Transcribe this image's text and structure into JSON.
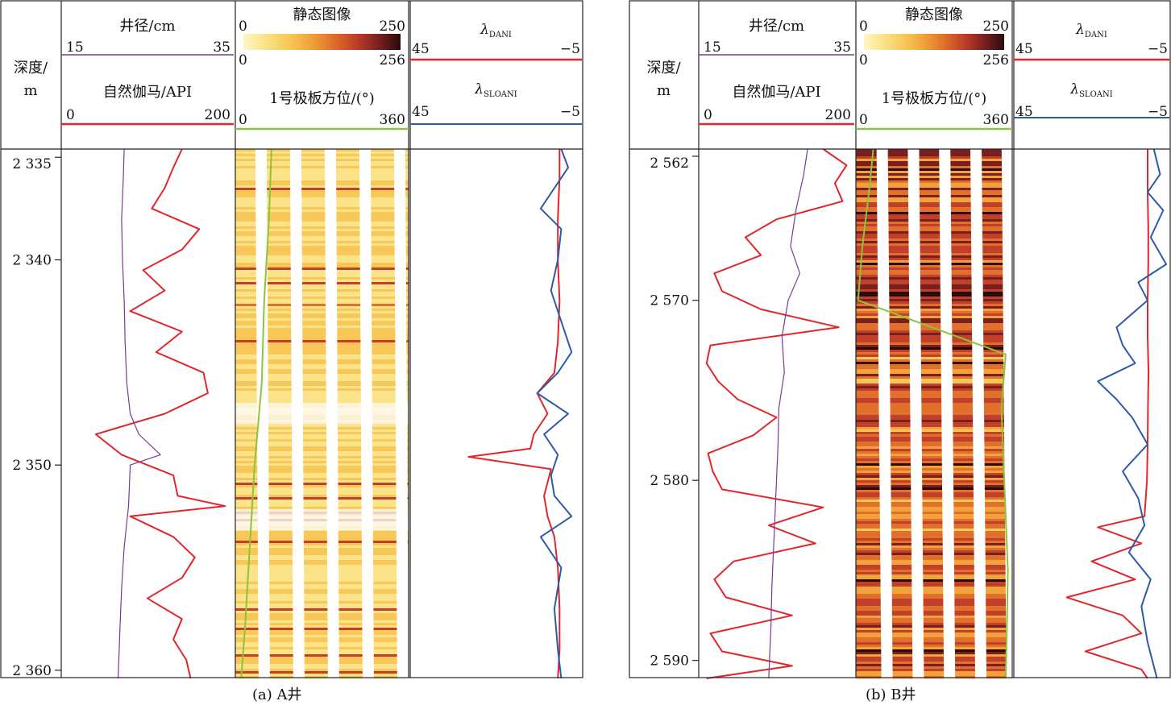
{
  "captions": {
    "a": "(a) A井",
    "b": "(b) B井"
  },
  "colors": {
    "gr": "#e0272c",
    "caliper": "#7b3a94",
    "pad": "#8cc43c",
    "dani": "#e0272c",
    "sloani": "#2f5aa8",
    "frame": "#222222"
  },
  "header": {
    "depth_label_1": "深度/",
    "depth_label_2": "m",
    "caliper_title": "井径/cm",
    "caliper_min": "15",
    "caliper_max": "35",
    "gr_title": "自然伽马/API",
    "gr_min": "0",
    "gr_max": "200",
    "image_title": "静态图像",
    "image_scale_top_min": "0",
    "image_scale_top_max": "250",
    "image_scale_bottom_min": "0",
    "image_scale_bottom_max": "256",
    "pad_title": "1号极板方位/(°)",
    "pad_min": "0",
    "pad_max": "360",
    "dani_symbol": "λ",
    "dani_sub": "DANI",
    "dani_min": "45",
    "dani_max": "−5",
    "sloani_symbol": "λ",
    "sloani_sub": "SLOANI",
    "sloani_min": "45",
    "sloani_max": "−5"
  },
  "chart_data": [
    {
      "type": "line",
      "title": "",
      "well": "A井",
      "depth_ticks": [
        "2 335",
        "2 340",
        "2 350",
        "2 360"
      ],
      "depth_tick_values": [
        2335,
        2340,
        2350,
        2360
      ],
      "depth_range": [
        2334.6,
        2360.4
      ],
      "series": [
        {
          "name": "自然伽马/API",
          "key": "gr",
          "xlim": [
            0,
            200
          ],
          "depth": [
            2334.6,
            2335.5,
            2336.5,
            2337.5,
            2338.5,
            2339.5,
            2340.5,
            2341.5,
            2342.5,
            2343.5,
            2344.5,
            2345.5,
            2346.5,
            2347.5,
            2348.5,
            2349.5,
            2350.5,
            2351.5,
            2352.0,
            2352.5,
            2353.5,
            2354.5,
            2355.5,
            2356.5,
            2357.5,
            2358.5,
            2359.5,
            2360.4
          ],
          "values": [
            140,
            130,
            120,
            105,
            160,
            140,
            95,
            120,
            80,
            140,
            110,
            165,
            170,
            120,
            40,
            70,
            130,
            135,
            190,
            80,
            130,
            155,
            140,
            100,
            140,
            130,
            145,
            150
          ]
        },
        {
          "name": "井径/cm",
          "key": "caliper",
          "xlim": [
            15,
            35
          ],
          "depth": [
            2334.6,
            2336,
            2338,
            2340,
            2342,
            2344,
            2346,
            2347.5,
            2348.5,
            2349.5,
            2350,
            2352,
            2354,
            2356,
            2358,
            2360.4
          ],
          "values": [
            22.3,
            22.2,
            22.0,
            22.1,
            22.3,
            22.4,
            22.6,
            23.0,
            24.0,
            26.5,
            23.0,
            22.8,
            22.3,
            22.0,
            21.8,
            21.6
          ]
        },
        {
          "name": "λDANI",
          "key": "dani",
          "xlim": [
            45,
            -5
          ],
          "depth": [
            2334.6,
            2336,
            2338,
            2340,
            2342,
            2344,
            2345.5,
            2346.5,
            2347.5,
            2348.5,
            2349.2,
            2349.6,
            2350.2,
            2351.5,
            2352.5,
            2353.5,
            2355,
            2357,
            2359,
            2360.4
          ],
          "values": [
            1.5,
            1.5,
            2,
            2,
            1.5,
            2,
            3,
            8,
            5,
            9,
            10,
            28,
            4,
            6,
            5,
            3,
            2,
            1.5,
            1.5,
            2
          ]
        },
        {
          "name": "λSLOANI",
          "key": "sloani",
          "xlim": [
            45,
            -5
          ],
          "depth": [
            2334.6,
            2335.5,
            2336.5,
            2337.5,
            2338.5,
            2340,
            2341.5,
            2343,
            2344.5,
            2345.5,
            2346.5,
            2347.5,
            2348.5,
            2349.5,
            2350.5,
            2351.5,
            2352.5,
            2353.5,
            2355,
            2357,
            2359,
            2360.4
          ],
          "values": [
            1,
            -1,
            3,
            7,
            1,
            2,
            4,
            1,
            -2,
            2,
            8,
            -1,
            6,
            2,
            4,
            3,
            -2,
            7,
            1,
            3,
            2,
            1
          ]
        },
        {
          "name": "1号极板方位/(°)",
          "key": "pad",
          "xlim": [
            0,
            360
          ],
          "depth": [
            2334.6,
            2338,
            2342,
            2346,
            2350,
            2354,
            2358,
            2360.4
          ],
          "values": [
            75,
            70,
            60,
            55,
            40,
            30,
            20,
            12
          ]
        }
      ]
    },
    {
      "type": "line",
      "title": "",
      "well": "B井",
      "depth_ticks": [
        "2 562",
        "2 570",
        "2 580",
        "2 590"
      ],
      "depth_tick_values": [
        2562,
        2570,
        2580,
        2590
      ],
      "depth_range": [
        2561.6,
        2591.0
      ],
      "series": [
        {
          "name": "自然伽马/API",
          "key": "gr",
          "xlim": [
            0,
            200
          ],
          "depth": [
            2561.6,
            2562.5,
            2563.5,
            2564.5,
            2565.5,
            2566.5,
            2567.5,
            2568.5,
            2569.5,
            2570.5,
            2571.5,
            2572.5,
            2573.5,
            2574.5,
            2575.5,
            2576.5,
            2577.5,
            2578.5,
            2579.5,
            2580.5,
            2581.5,
            2582.5,
            2583.5,
            2584.5,
            2585.5,
            2586.5,
            2587.5,
            2588.5,
            2589.5,
            2590.3,
            2591.0
          ],
          "values": [
            160,
            190,
            175,
            185,
            100,
            60,
            80,
            20,
            30,
            80,
            180,
            15,
            10,
            25,
            50,
            100,
            70,
            12,
            18,
            30,
            160,
            90,
            150,
            45,
            20,
            35,
            120,
            15,
            30,
            120,
            10
          ]
        },
        {
          "name": "井径/cm",
          "key": "caliper",
          "xlim": [
            15,
            35
          ],
          "depth": [
            2561.6,
            2563,
            2565,
            2567,
            2568.5,
            2570,
            2572,
            2574,
            2576,
            2578,
            2580,
            2582,
            2584,
            2586,
            2588,
            2590,
            2591
          ],
          "values": [
            29,
            28.5,
            27.5,
            26.8,
            28.0,
            26.5,
            25.7,
            26.0,
            25.3,
            25.2,
            25.0,
            24.8,
            24.6,
            24.4,
            24.3,
            24.1,
            24.0
          ]
        },
        {
          "name": "λDANI",
          "key": "dani",
          "xlim": [
            45,
            -5
          ],
          "depth": [
            2561.6,
            2564,
            2566,
            2568,
            2570,
            2572,
            2574,
            2576,
            2578,
            2580,
            2582,
            2582.6,
            2583.5,
            2584.5,
            2585.5,
            2586.5,
            2587.5,
            2588.5,
            2589.5,
            2590.5,
            2591.0
          ],
          "values": [
            2,
            2,
            1.8,
            1.8,
            2,
            2,
            1.7,
            1.9,
            2,
            2.2,
            3,
            18,
            4,
            20,
            6,
            28,
            10,
            4,
            22,
            4,
            2
          ]
        },
        {
          "name": "λSLOANI",
          "key": "sloani",
          "xlim": [
            45,
            -5
          ],
          "depth": [
            2561.6,
            2563,
            2564,
            2565,
            2566.5,
            2568,
            2569,
            2570,
            2571.5,
            2572.5,
            2573.5,
            2574.5,
            2575.5,
            2576.5,
            2578,
            2579.5,
            2581,
            2582.5,
            2584,
            2585.5,
            2587,
            2589,
            2591.0
          ],
          "values": [
            0,
            -2,
            2,
            -3,
            1,
            -4,
            5,
            2,
            12,
            10,
            6,
            18,
            12,
            7,
            2,
            10,
            5,
            3,
            8,
            1,
            4,
            2,
            -1
          ]
        },
        {
          "name": "1号极板方位/(°)",
          "key": "pad",
          "xlim": [
            0,
            360
          ],
          "depth": [
            2561.6,
            2564,
            2567,
            2570,
            2573,
            2576,
            2579,
            2582,
            2585,
            2588,
            2591.0
          ],
          "values": [
            40,
            30,
            15,
            5,
            345,
            335,
            340,
            345,
            350,
            348,
            345
          ]
        }
      ]
    }
  ]
}
